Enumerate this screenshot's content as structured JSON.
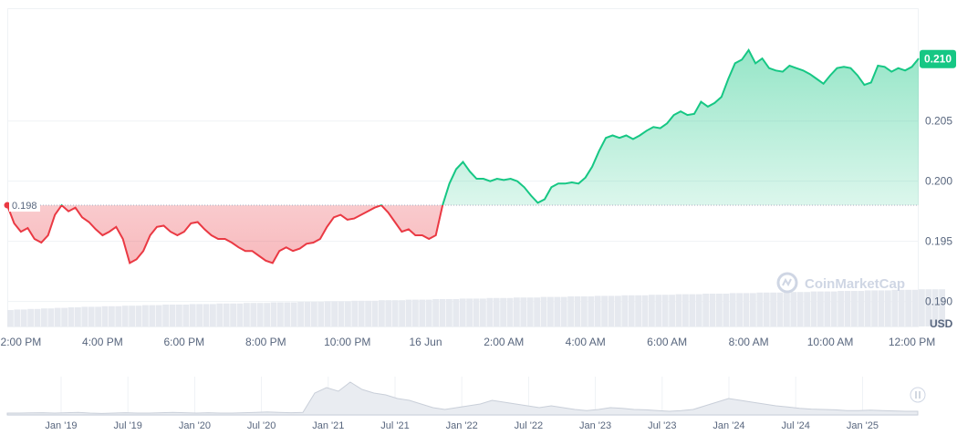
{
  "chart_data": {
    "type": "line",
    "baseline": {
      "value": 0.198,
      "label": "0.198"
    },
    "current": {
      "value": 0.21,
      "label": "0.210"
    },
    "currency_label": "USD",
    "watermark": "CoinMarketCap",
    "colors": {
      "up": "#16c784",
      "down": "#ea3943",
      "grid": "#eff2f5",
      "text": "#58667e"
    },
    "y_axis": {
      "min": 0.188,
      "max": 0.2143,
      "ticks": [
        "0.190",
        "0.195",
        "0.200",
        "0.205"
      ]
    },
    "x_axis": {
      "ticks": [
        {
          "label": "2:00 PM",
          "i": 2
        },
        {
          "label": "4:00 PM",
          "i": 14
        },
        {
          "label": "6:00 PM",
          "i": 26
        },
        {
          "label": "8:00 PM",
          "i": 38
        },
        {
          "label": "10:00 PM",
          "i": 50
        },
        {
          "label": "16 Jun",
          "i": 61.5
        },
        {
          "label": "2:00 AM",
          "i": 73
        },
        {
          "label": "4:00 AM",
          "i": 85
        },
        {
          "label": "6:00 AM",
          "i": 97
        },
        {
          "label": "8:00 AM",
          "i": 109
        },
        {
          "label": "10:00 AM",
          "i": 121
        },
        {
          "label": "12:00 PM",
          "i": 133
        }
      ]
    },
    "series": [
      {
        "values": [
          0.198,
          0.1965,
          0.1958,
          0.1961,
          0.1952,
          0.1949,
          0.1955,
          0.1972,
          0.198,
          0.1975,
          0.1978,
          0.197,
          0.1966,
          0.196,
          0.1955,
          0.1958,
          0.1962,
          0.1952,
          0.1932,
          0.1935,
          0.1942,
          0.1955,
          0.1962,
          0.1963,
          0.1958,
          0.1955,
          0.1958,
          0.1965,
          0.1966,
          0.196,
          0.1955,
          0.1952,
          0.1952,
          0.1949,
          0.1945,
          0.1942,
          0.1942,
          0.1938,
          0.1934,
          0.1932,
          0.1942,
          0.1945,
          0.1942,
          0.1944,
          0.1948,
          0.1949,
          0.1952,
          0.1962,
          0.197,
          0.1972,
          0.1968,
          0.1969,
          0.1972,
          0.1975,
          0.1978,
          0.198,
          0.1974,
          0.1966,
          0.1958,
          0.196,
          0.1955,
          0.1955,
          0.1952,
          0.1955,
          0.198,
          0.1998,
          0.201,
          0.2016,
          0.2008,
          0.2002,
          0.2002,
          0.2,
          0.2002,
          0.2001,
          0.2002,
          0.2,
          0.1995,
          0.1988,
          0.1982,
          0.1985,
          0.1995,
          0.1998,
          0.1998,
          0.1999,
          0.1998,
          0.2003,
          0.2012,
          0.2025,
          0.2036,
          0.2038,
          0.2036,
          0.2038,
          0.2035,
          0.2038,
          0.2042,
          0.2045,
          0.2044,
          0.2048,
          0.2055,
          0.2058,
          0.2055,
          0.2056,
          0.2066,
          0.2062,
          0.2065,
          0.207,
          0.2085,
          0.2098,
          0.2101,
          0.2109,
          0.2098,
          0.2102,
          0.2094,
          0.2092,
          0.2091,
          0.2096,
          0.2094,
          0.2092,
          0.2089,
          0.2085,
          0.2081,
          0.2088,
          0.2094,
          0.2095,
          0.2094,
          0.2088,
          0.208,
          0.2082,
          0.2096,
          0.2095,
          0.2091,
          0.2094,
          0.2092,
          0.2095,
          0.2102
        ]
      }
    ],
    "volume": [
      0.03,
      0.031,
      0.031,
      0.032,
      0.032,
      0.033,
      0.033,
      0.034,
      0.034,
      0.035,
      0.035,
      0.036,
      0.036,
      0.036,
      0.037,
      0.037,
      0.037,
      0.038,
      0.038,
      0.038,
      0.039,
      0.039,
      0.039,
      0.04,
      0.04,
      0.04,
      0.04,
      0.041,
      0.041,
      0.041,
      0.041,
      0.042,
      0.042,
      0.042,
      0.042,
      0.043,
      0.043,
      0.043,
      0.043,
      0.044,
      0.044,
      0.044,
      0.044,
      0.045,
      0.045,
      0.045,
      0.045,
      0.046,
      0.046,
      0.046,
      0.046,
      0.047,
      0.047,
      0.047,
      0.047,
      0.048,
      0.048,
      0.048,
      0.048,
      0.049,
      0.049,
      0.049,
      0.049,
      0.05,
      0.05,
      0.05,
      0.05,
      0.051,
      0.051,
      0.051,
      0.051,
      0.052,
      0.052,
      0.052,
      0.052,
      0.053,
      0.053,
      0.053,
      0.053,
      0.054,
      0.054,
      0.054,
      0.054,
      0.055,
      0.055,
      0.055,
      0.055,
      0.056,
      0.056,
      0.056,
      0.056,
      0.057,
      0.057,
      0.057,
      0.057,
      0.058,
      0.058,
      0.058,
      0.058,
      0.059,
      0.059,
      0.059,
      0.059,
      0.06,
      0.06,
      0.06,
      0.06,
      0.061,
      0.061,
      0.061,
      0.061,
      0.062,
      0.062,
      0.062,
      0.062,
      0.063,
      0.063,
      0.063,
      0.063,
      0.064,
      0.064,
      0.064,
      0.064,
      0.065,
      0.065,
      0.065,
      0.065,
      0.066,
      0.066,
      0.066,
      0.066,
      0.067,
      0.067,
      0.067,
      0.067,
      0.068,
      0.068,
      0.068,
      0.068
    ],
    "navigator": {
      "labels": [
        "Jan '19",
        "Jul '19",
        "Jan '20",
        "Jul '20",
        "Jan '21",
        "Jul '21",
        "Jan '22",
        "Jul '22",
        "Jan '23",
        "Jul '23",
        "Jan '24",
        "Jul '24",
        "Jan '25"
      ],
      "values": [
        0.05,
        0.05,
        0.055,
        0.06,
        0.05,
        0.06,
        0.07,
        0.05,
        0.04,
        0.05,
        0.06,
        0.05,
        0.05,
        0.06,
        0.07,
        0.06,
        0.05,
        0.06,
        0.05,
        0.05,
        0.06,
        0.07,
        0.08,
        0.07,
        0.06,
        0.07,
        0.6,
        0.75,
        0.65,
        0.9,
        0.7,
        0.6,
        0.55,
        0.45,
        0.4,
        0.3,
        0.2,
        0.15,
        0.2,
        0.25,
        0.3,
        0.4,
        0.35,
        0.3,
        0.25,
        0.2,
        0.25,
        0.2,
        0.15,
        0.12,
        0.15,
        0.2,
        0.18,
        0.15,
        0.14,
        0.12,
        0.1,
        0.12,
        0.15,
        0.25,
        0.35,
        0.45,
        0.4,
        0.35,
        0.3,
        0.25,
        0.22,
        0.18,
        0.16,
        0.15,
        0.14,
        0.12,
        0.12,
        0.13,
        0.12,
        0.11,
        0.1,
        0.1
      ]
    }
  }
}
